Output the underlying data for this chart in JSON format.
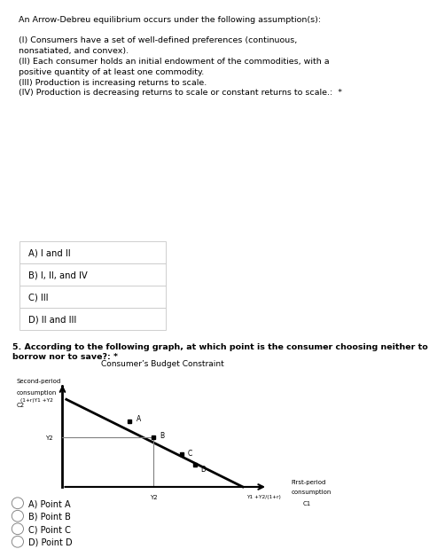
{
  "bg_color": "#ffffff",
  "q4_title": "An Arrow-Debreu equilibrium occurs under the following assumption(s):",
  "q4_body": "(I) Consumers have a set of well-defined preferences (continuous,\nnonsatiated, and convex).\n(II) Each consumer holds an initial endowment of the commodities, with a\npositive quantity of at least one commodity.\n(III) Production is increasing returns to scale.\n(IV) Production is decreasing returns to scale or constant returns to scale.:  *",
  "options_q4": [
    "A) I and II",
    "B) I, II, and IV",
    "C) III",
    "D) II and III"
  ],
  "q5_text": "5. According to the following graph, at which point is the consumer choosing neither to\nborrow nor to save?: *",
  "graph_title": "Consumer’s Budget Constraint",
  "y_label_top": "Second-period",
  "y_label_mid": "consumption",
  "y_label_bot": "C2",
  "x_label_top": "First-period",
  "x_label_mid": "consumption",
  "x_label_bot": "C1",
  "y_intercept_label": "(1+r)Y1 +Y2",
  "x_intercept_label": "Y1 +Y2/(1+r)",
  "y2_label": "Y2",
  "x2_label": "Y2",
  "points": {
    "A": [
      0.33,
      0.68
    ],
    "B": [
      0.455,
      0.5
    ],
    "C": [
      0.6,
      0.31
    ],
    "D": [
      0.67,
      0.195
    ]
  },
  "options_q5": [
    "A) Point A",
    "B) Point B",
    "C) Point C",
    "D) Point D"
  ],
  "border_color": "#c0c0c0",
  "text_color": "#000000",
  "line_color": "#000000",
  "ref_line_color": "#808080"
}
